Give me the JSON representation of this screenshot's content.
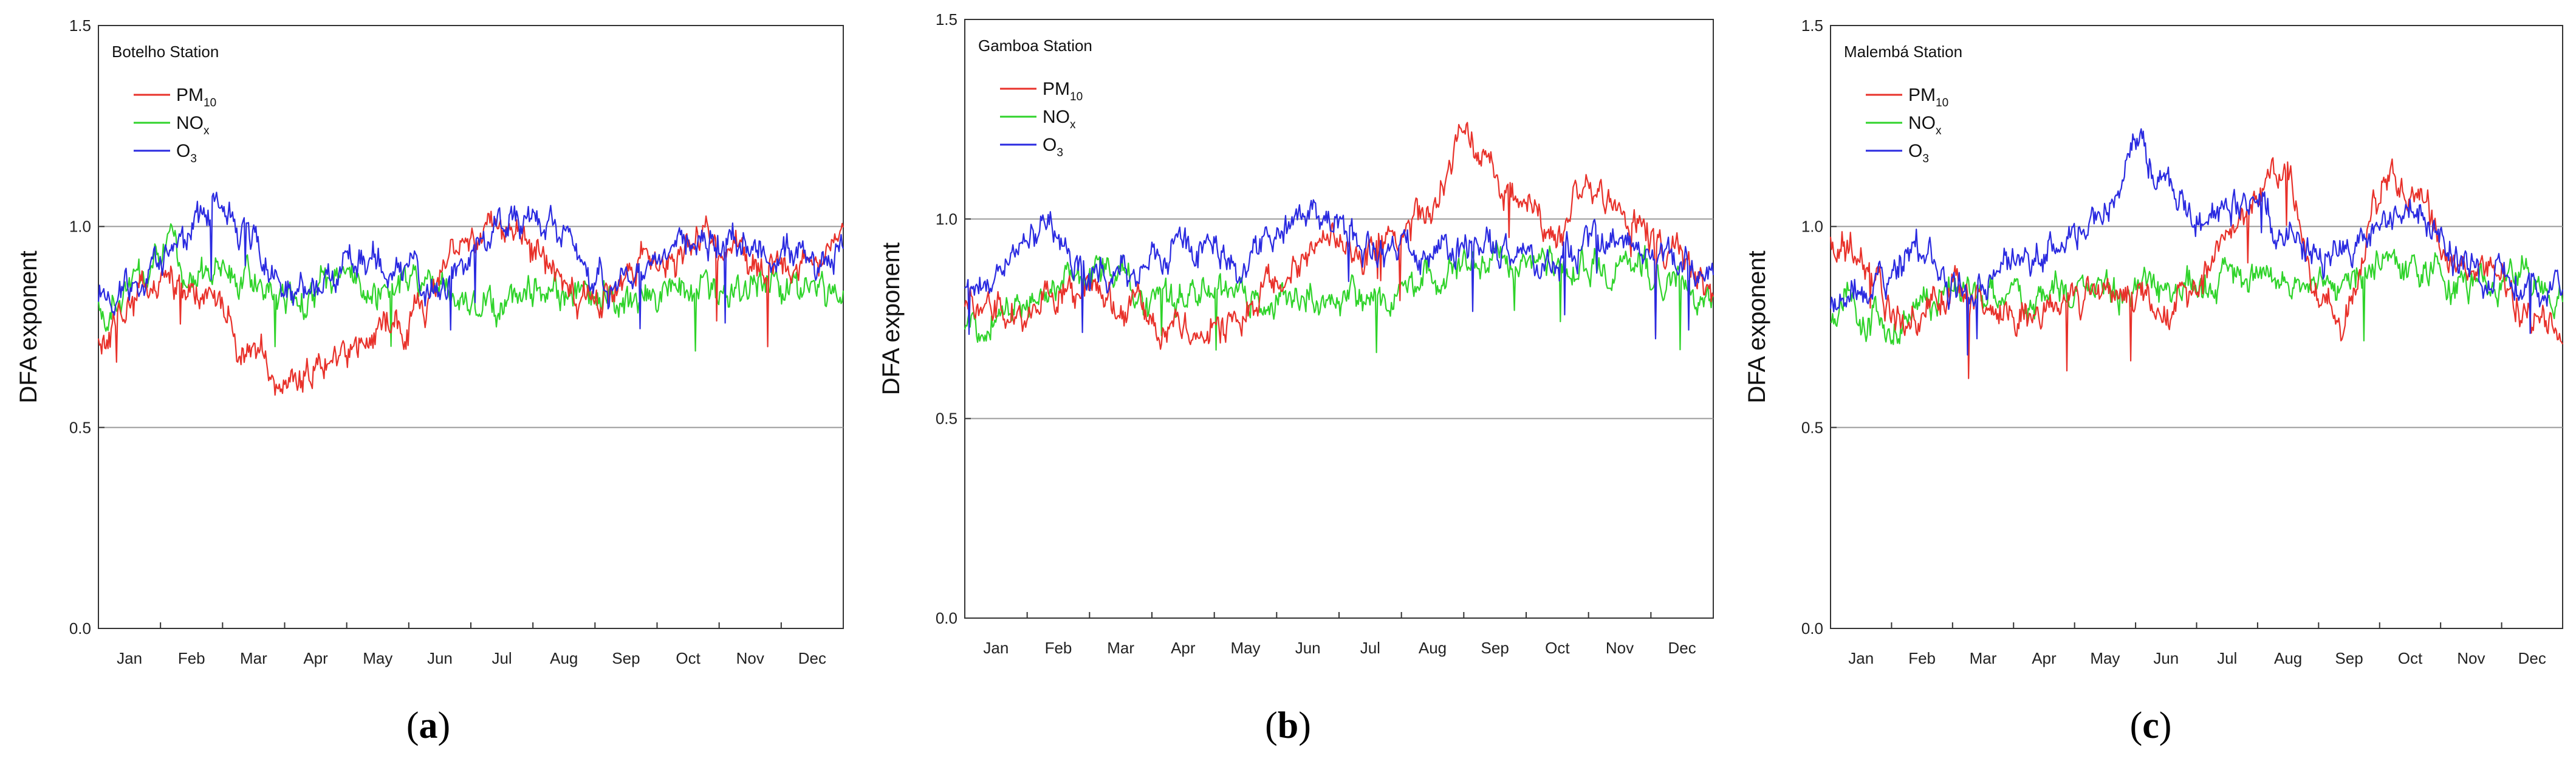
{
  "chart_data": [
    {
      "type": "line",
      "panel": "a",
      "panel_label": {
        "open": "(",
        "letter": "a",
        "close": ")"
      },
      "title": "Botelho Station",
      "ylabel": "DFA exponent",
      "xlabel": "",
      "ylim": [
        0.0,
        1.5
      ],
      "yticks": [
        "0.0",
        "0.5",
        "1.0",
        "1.5"
      ],
      "gridlines_at": [
        0.5,
        1.0
      ],
      "months": [
        "Jan",
        "Feb",
        "Mar",
        "Apr",
        "May",
        "Jun",
        "Jul",
        "Aug",
        "Sep",
        "Oct",
        "Nov",
        "Dec"
      ],
      "legend": [
        {
          "base": "PM",
          "sub": "10",
          "color": "#e8312a"
        },
        {
          "base": "NO",
          "sub": "x",
          "color": "#2fd32a"
        },
        {
          "base": "O",
          "sub": "3",
          "color": "#2a2ae0"
        }
      ],
      "series": [
        {
          "name": "PM10",
          "color": "#e8312a",
          "values": [
            0.72,
            0.8,
            0.85,
            0.84,
            0.76,
            0.68,
            0.62,
            0.64,
            0.7,
            0.74,
            0.77,
            0.86,
            0.95,
            1.0,
            0.94,
            0.85,
            0.82,
            0.87,
            0.93,
            0.94,
            0.95,
            0.92,
            0.88,
            0.9,
            0.94
          ]
        },
        {
          "name": "NOx",
          "color": "#2fd32a",
          "values": [
            0.8,
            0.84,
            0.93,
            0.88,
            0.9,
            0.86,
            0.84,
            0.83,
            0.86,
            0.85,
            0.88,
            0.84,
            0.8,
            0.82,
            0.86,
            0.83,
            0.82,
            0.8,
            0.83,
            0.85,
            0.84,
            0.86,
            0.87,
            0.86,
            0.84
          ]
        },
        {
          "name": "O3",
          "color": "#2a2ae0",
          "values": [
            0.82,
            0.86,
            0.9,
            0.97,
            1.04,
            0.96,
            0.84,
            0.87,
            0.9,
            0.92,
            0.88,
            0.86,
            0.98,
            1.03,
            1.0,
            1.03,
            0.85,
            0.88,
            0.92,
            0.95,
            0.97,
            0.96,
            0.94,
            0.9,
            0.93
          ]
        }
      ]
    },
    {
      "type": "line",
      "panel": "b",
      "panel_label": {
        "open": "(",
        "letter": "b",
        "close": ")"
      },
      "title": "Gamboa Station",
      "ylabel": "DFA exponent",
      "xlabel": "",
      "ylim": [
        0.0,
        1.5
      ],
      "yticks": [
        "0.0",
        "0.5",
        "1.0",
        "1.5"
      ],
      "gridlines_at": [
        0.5,
        1.0
      ],
      "months": [
        "Jan",
        "Feb",
        "Mar",
        "Apr",
        "May",
        "Jun",
        "Jul",
        "Aug",
        "Sep",
        "Oct",
        "Nov",
        "Dec"
      ],
      "legend": [
        {
          "base": "PM",
          "sub": "10",
          "color": "#e8312a"
        },
        {
          "base": "NO",
          "sub": "x",
          "color": "#2fd32a"
        },
        {
          "base": "O",
          "sub": "3",
          "color": "#2a2ae0"
        }
      ],
      "series": [
        {
          "name": "PM10",
          "color": "#e8312a",
          "values": [
            0.82,
            0.8,
            0.78,
            0.84,
            0.8,
            0.76,
            0.74,
            0.73,
            0.75,
            0.77,
            0.84,
            0.92,
            0.95,
            0.92,
            0.96,
            1.05,
            1.18,
            1.1,
            1.02,
            0.98,
            1.07,
            1.0,
            0.92,
            0.88,
            0.82
          ]
        },
        {
          "name": "NOx",
          "color": "#2fd32a",
          "values": [
            0.75,
            0.77,
            0.8,
            0.83,
            0.85,
            0.82,
            0.8,
            0.8,
            0.82,
            0.82,
            0.8,
            0.84,
            0.82,
            0.8,
            0.78,
            0.84,
            0.88,
            0.9,
            0.88,
            0.9,
            0.88,
            0.86,
            0.86,
            0.84,
            0.78
          ]
        },
        {
          "name": "O3",
          "color": "#2a2ae0",
          "values": [
            0.84,
            0.82,
            0.96,
            0.95,
            0.84,
            0.88,
            0.9,
            0.91,
            0.9,
            0.92,
            0.96,
            1.02,
            0.98,
            0.93,
            0.91,
            0.9,
            0.92,
            0.92,
            0.91,
            0.9,
            0.94,
            0.96,
            0.92,
            0.9,
            0.88
          ]
        }
      ]
    },
    {
      "type": "line",
      "panel": "c",
      "panel_label": {
        "open": "(",
        "letter": "c",
        "close": ")"
      },
      "title": "Malembá Station",
      "ylabel": "DFA exponent",
      "xlabel": "",
      "ylim": [
        0.0,
        1.5
      ],
      "yticks": [
        "0.0",
        "0.5",
        "1.0",
        "1.5"
      ],
      "gridlines_at": [
        0.5,
        1.0
      ],
      "months": [
        "Jan",
        "Feb",
        "Mar",
        "Apr",
        "May",
        "Jun",
        "Jul",
        "Aug",
        "Sep",
        "Oct",
        "Nov",
        "Dec"
      ],
      "legend": [
        {
          "base": "PM",
          "sub": "10",
          "color": "#e8312a"
        },
        {
          "base": "NO",
          "sub": "x",
          "color": "#2fd32a"
        },
        {
          "base": "O",
          "sub": "3",
          "color": "#2a2ae0"
        }
      ],
      "series": [
        {
          "name": "PM10",
          "color": "#e8312a",
          "values": [
            0.97,
            0.92,
            0.78,
            0.8,
            0.84,
            0.82,
            0.8,
            0.8,
            0.82,
            0.84,
            0.82,
            0.8,
            0.85,
            1.0,
            1.06,
            1.14,
            0.8,
            0.78,
            1.06,
            1.08,
            0.98,
            0.9,
            0.86,
            0.78,
            0.75
          ]
        },
        {
          "name": "NOx",
          "color": "#2fd32a",
          "values": [
            0.78,
            0.8,
            0.72,
            0.8,
            0.86,
            0.84,
            0.82,
            0.84,
            0.86,
            0.84,
            0.82,
            0.84,
            0.85,
            0.86,
            0.88,
            0.86,
            0.86,
            0.88,
            0.9,
            0.9,
            0.88,
            0.86,
            0.86,
            0.84,
            0.84
          ]
        },
        {
          "name": "O3",
          "color": "#2a2ae0",
          "values": [
            0.8,
            0.84,
            0.88,
            0.92,
            0.86,
            0.88,
            0.9,
            0.96,
            1.0,
            1.05,
            1.2,
            1.1,
            1.02,
            1.05,
            1.04,
            0.98,
            0.93,
            0.96,
            0.98,
            1.0,
            0.95,
            0.9,
            0.88,
            0.86,
            0.86
          ]
        }
      ]
    }
  ]
}
